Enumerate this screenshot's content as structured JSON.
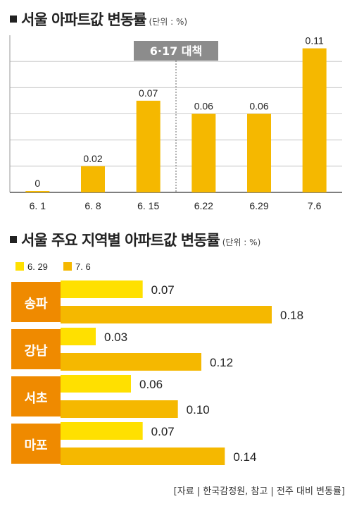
{
  "chart_data": [
    {
      "type": "bar",
      "title": "서울 아파트값 변동률",
      "unit": "(단위 : %)",
      "categories": [
        "6. 1",
        "6. 8",
        "6. 15",
        "6.22",
        "6.29",
        "7.6"
      ],
      "values": [
        0,
        0.02,
        0.07,
        0.06,
        0.06,
        0.11
      ],
      "value_labels": [
        "0",
        "0.02",
        "0.07",
        "0.06",
        "0.06",
        "0.11"
      ],
      "annotation": "6·17 대책",
      "ylim": [
        0,
        0.12
      ],
      "grid": true,
      "colors": {
        "bar": "#f5b800",
        "grid": "#9a9a9a",
        "annotation_bg": "#8c8c8c"
      }
    },
    {
      "type": "bar",
      "orientation": "horizontal",
      "title": "서울 주요 지역별 아파트값 변동률",
      "unit": "(단위 : %)",
      "categories": [
        "송파",
        "강남",
        "서초",
        "마포"
      ],
      "series": [
        {
          "name": "6. 29",
          "values": [
            0.07,
            0.03,
            0.06,
            0.07
          ],
          "labels": [
            "0.07",
            "0.03",
            "0.06",
            "0.07"
          ],
          "color": "#ffe000"
        },
        {
          "name": "7. 6",
          "values": [
            0.18,
            0.12,
            0.1,
            0.14
          ],
          "labels": [
            "0.18",
            "0.12",
            "0.10",
            "0.14"
          ],
          "color": "#f5b800"
        }
      ],
      "legend": "top-left",
      "colors": {
        "category_bg": "#ef8a00",
        "category_text": "#ffffff"
      }
    }
  ],
  "source": "[자료 | 한국감정원, 참고 | 전주 대비 변동률]"
}
